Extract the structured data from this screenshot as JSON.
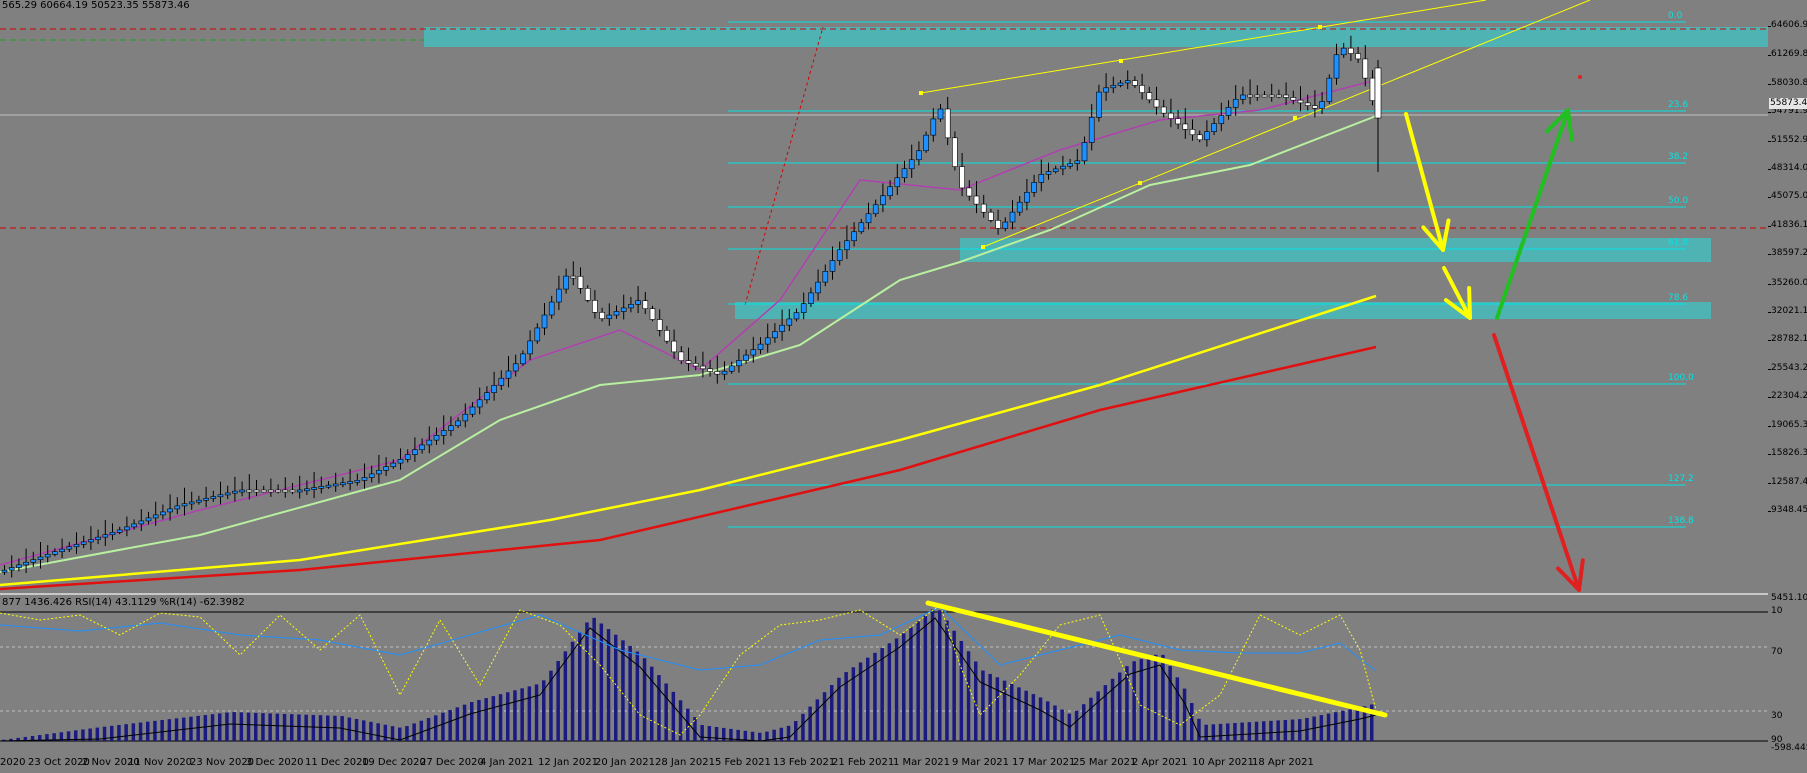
{
  "header": {
    "info": "565.29 60664.19 50523.35 55873.46"
  },
  "indicator_info": {
    "text": "877 1436.426  RSI(14) 43.1129  %R(14) -62.3982"
  },
  "current_price": "55873.46",
  "colors": {
    "background": "#808080",
    "candle_up": "#1e90ff",
    "candle_down": "#ffffff",
    "ma_fast": "#b040b0",
    "ma_mid": "#b8f0a0",
    "ma_slow": "#ffff00",
    "ma_slowest": "#e01010",
    "fib": "#00e5e5",
    "zone": "#4fb3b3",
    "arrow_yellow": "#ffff00",
    "arrow_green": "#20c020",
    "arrow_red": "#e02020",
    "histogram": "#1a1a80",
    "rsi": "#1e90ff",
    "wpr": "#ffff00",
    "signal": "#000000"
  },
  "chart_data": {
    "type": "candlestick",
    "title": "",
    "price_axis": [
      "64606.9",
      "61269.8",
      "58030.8",
      "54791.9",
      "51552.9",
      "48314.0",
      "45075.0",
      "41836.1",
      "38597.2",
      "35260.0",
      "32021.1",
      "28782.1",
      "25543.2",
      "22304.2",
      "19065.3",
      "15826.3",
      "12587.4",
      "9348.45"
    ],
    "ylim": [
      9348.45,
      66000
    ],
    "time_axis": [
      "2020",
      "23 Oct 2020",
      "2 Nov 2020",
      "11 Nov 2020",
      "23 Nov 2020",
      "3 Dec 2020",
      "11 Dec 2020",
      "19 Dec 2020",
      "27 Dec 2020",
      "4 Jan 2021",
      "12 Jan 2021",
      "20 Jan 2021",
      "28 Jan 2021",
      "5 Feb 2021",
      "13 Feb 2021",
      "21 Feb 2021",
      "1 Mar 2021",
      "9 Mar 2021",
      "17 Mar 2021",
      "25 Mar 2021",
      "2 Apr 2021",
      "10 Apr 2021",
      "18 Apr 2021"
    ],
    "fib_levels": [
      {
        "label": "0.0",
        "price": 64606.9
      },
      {
        "label": "23.6",
        "price": 56200
      },
      {
        "label": "38.2",
        "price": 51400
      },
      {
        "label": "50.0",
        "price": 47300
      },
      {
        "label": "61.8",
        "price": 43100
      },
      {
        "label": "78.6",
        "price": 37000
      },
      {
        "label": "100.0",
        "price": 29200
      },
      {
        "label": "127.2",
        "price": 19500
      },
      {
        "label": "138.8",
        "price": 15600
      }
    ],
    "indicator_axis": [
      "5451.107",
      "70",
      "30",
      "-598.445"
    ],
    "indicator_levels": [
      "10",
      "90"
    ]
  }
}
